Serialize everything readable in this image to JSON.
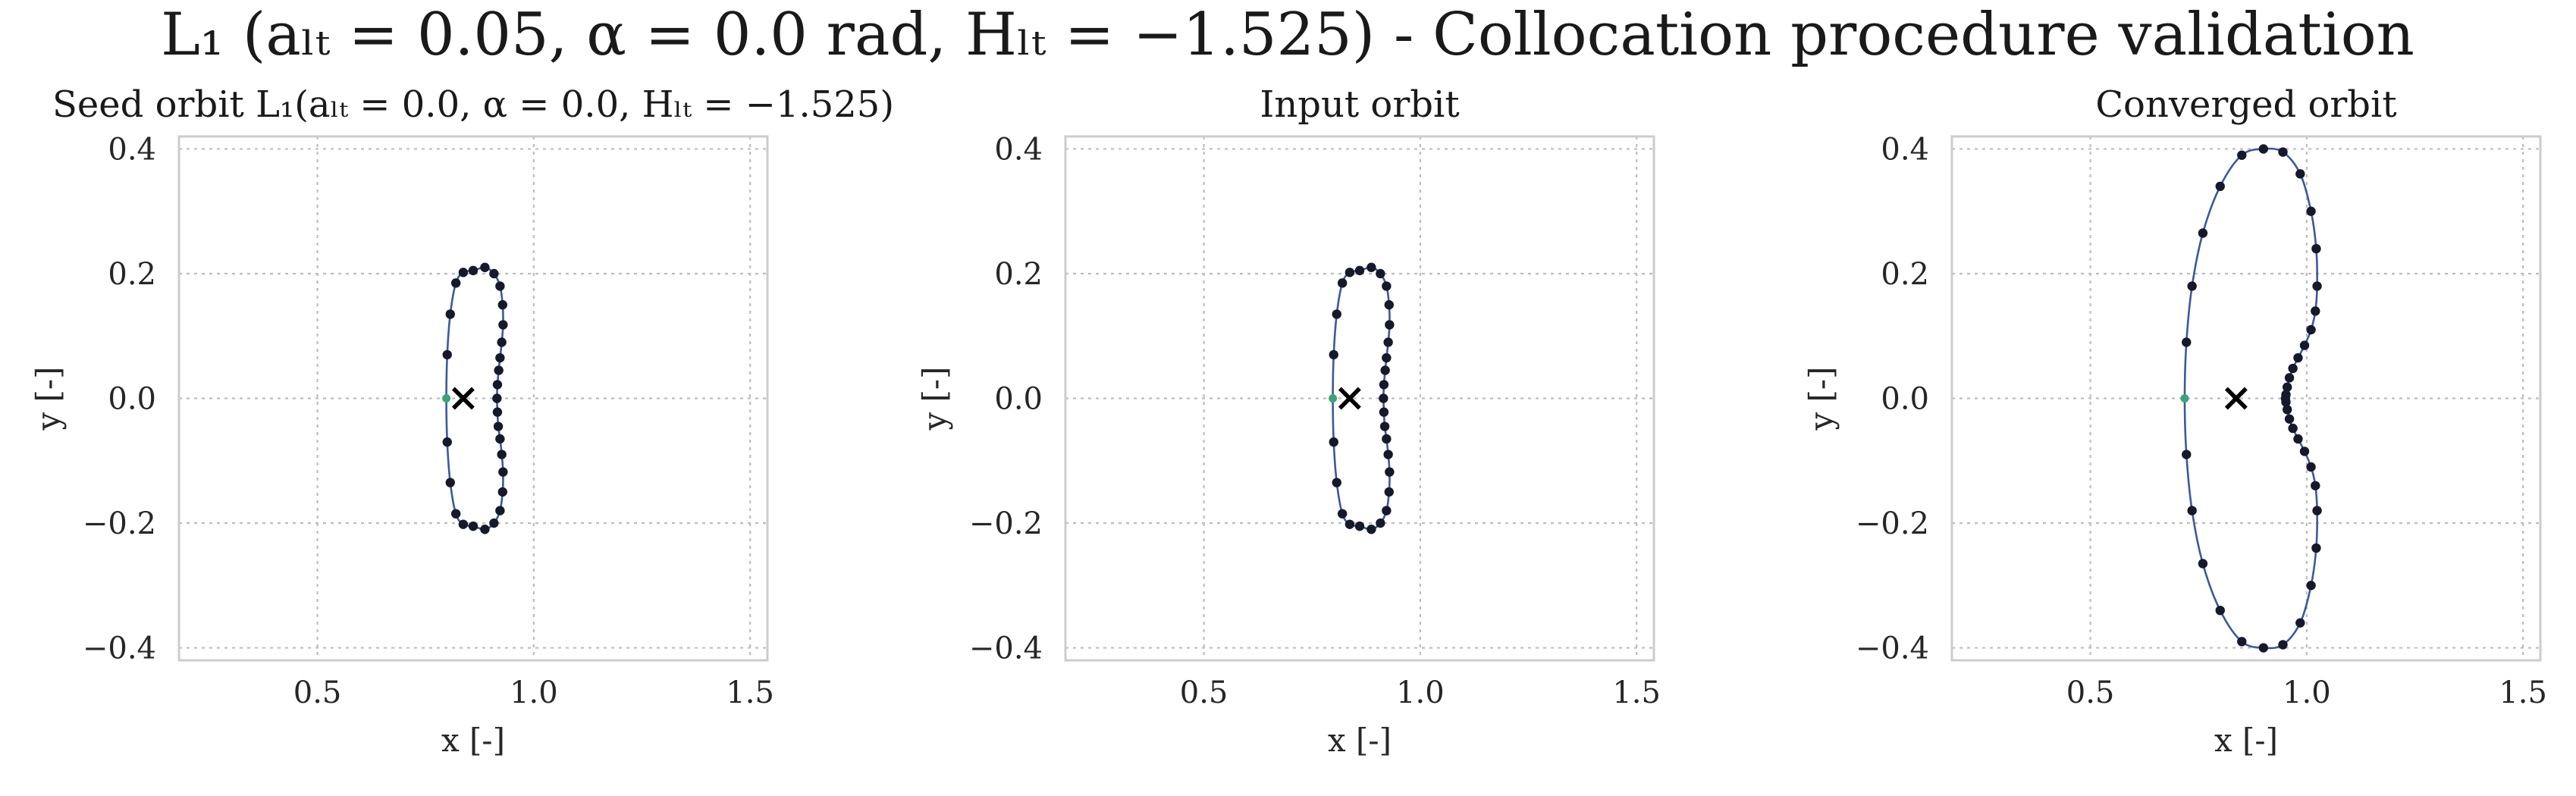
{
  "figure": {
    "suptitle": "L₁ (aₗₜ = 0.05, α = 0.0 rad, Hₗₜ = −1.525) - Collocation procedure validation"
  },
  "colors": {
    "orbit_line": "#3b5a9a",
    "nodes": "#15192b",
    "start_point": "#3aa37b",
    "libration_point": "#000000",
    "grid": "#bdbdbd",
    "frame": "#cccccc"
  },
  "chart_data": [
    {
      "type": "scatter",
      "title": "Seed orbit L₁(aₗₜ = 0.0, α = 0.0, Hₗₜ = −1.525)",
      "xlabel": "x [-]",
      "ylabel": "y [-]",
      "xlim": [
        0.18,
        1.54
      ],
      "ylim": [
        -0.42,
        0.42
      ],
      "xticks": [
        0.5,
        1.0,
        1.5
      ],
      "xtick_labels": [
        "0.5",
        "1.0",
        "1.5"
      ],
      "yticks": [
        -0.4,
        -0.2,
        0.0,
        0.2,
        0.4
      ],
      "ytick_labels": [
        "−0.4",
        "−0.2",
        "0.0",
        "0.2",
        "0.4"
      ],
      "grid": true,
      "libration_point": [
        0.837,
        0.0
      ],
      "start_point": [
        0.798,
        0.0
      ],
      "series": [
        {
          "x": [
            0.798,
            0.8,
            0.807,
            0.82,
            0.837,
            0.86,
            0.887,
            0.908,
            0.922,
            0.928,
            0.929,
            0.926,
            0.922,
            0.919,
            0.916,
            0.915,
            0.916,
            0.918,
            0.922,
            0.926,
            0.929,
            0.928,
            0.922,
            0.908,
            0.887,
            0.86,
            0.837,
            0.82,
            0.807,
            0.8
          ],
          "y": [
            0.0,
            0.07,
            0.135,
            0.185,
            0.202,
            0.205,
            0.21,
            0.2,
            0.18,
            0.15,
            0.118,
            0.09,
            0.065,
            0.045,
            0.022,
            0.0,
            -0.022,
            -0.045,
            -0.065,
            -0.09,
            -0.118,
            -0.15,
            -0.18,
            -0.2,
            -0.21,
            -0.205,
            -0.202,
            -0.185,
            -0.135,
            -0.07
          ]
        }
      ]
    },
    {
      "type": "scatter",
      "title": "Input orbit",
      "xlabel": "x [-]",
      "ylabel": "y [-]",
      "xlim": [
        0.18,
        1.54
      ],
      "ylim": [
        -0.42,
        0.42
      ],
      "xticks": [
        0.5,
        1.0,
        1.5
      ],
      "xtick_labels": [
        "0.5",
        "1.0",
        "1.5"
      ],
      "yticks": [
        -0.4,
        -0.2,
        0.0,
        0.2,
        0.4
      ],
      "ytick_labels": [
        "−0.4",
        "−0.2",
        "0.0",
        "0.2",
        "0.4"
      ],
      "grid": true,
      "libration_point": [
        0.837,
        0.0
      ],
      "start_point": [
        0.798,
        0.0
      ],
      "series": [
        {
          "x": [
            0.798,
            0.8,
            0.807,
            0.82,
            0.837,
            0.86,
            0.887,
            0.908,
            0.922,
            0.928,
            0.929,
            0.926,
            0.922,
            0.919,
            0.916,
            0.915,
            0.916,
            0.918,
            0.922,
            0.926,
            0.929,
            0.928,
            0.922,
            0.908,
            0.887,
            0.86,
            0.837,
            0.82,
            0.807,
            0.8
          ],
          "y": [
            0.0,
            0.07,
            0.135,
            0.185,
            0.202,
            0.205,
            0.21,
            0.2,
            0.18,
            0.15,
            0.118,
            0.09,
            0.065,
            0.045,
            0.022,
            0.0,
            -0.022,
            -0.045,
            -0.065,
            -0.09,
            -0.118,
            -0.15,
            -0.18,
            -0.2,
            -0.21,
            -0.205,
            -0.202,
            -0.185,
            -0.135,
            -0.07
          ]
        }
      ]
    },
    {
      "type": "scatter",
      "title": "Converged orbit",
      "xlabel": "x [-]",
      "ylabel": "y [-]",
      "xlim": [
        0.18,
        1.54
      ],
      "ylim": [
        -0.42,
        0.42
      ],
      "xticks": [
        0.5,
        1.0,
        1.5
      ],
      "xtick_labels": [
        "0.5",
        "1.0",
        "1.5"
      ],
      "yticks": [
        -0.4,
        -0.2,
        0.0,
        0.2,
        0.4
      ],
      "ytick_labels": [
        "−0.4",
        "−0.2",
        "0.0",
        "0.2",
        "0.4"
      ],
      "grid": true,
      "libration_point": [
        0.837,
        0.0
      ],
      "start_point": [
        0.718,
        0.0
      ],
      "series": [
        {
          "x": [
            0.718,
            0.722,
            0.735,
            0.76,
            0.8,
            0.85,
            0.9,
            0.945,
            0.985,
            1.01,
            1.022,
            1.024,
            1.02,
            1.01,
            0.995,
            0.98,
            0.968,
            0.96,
            0.955,
            0.952,
            0.951,
            0.952,
            0.955,
            0.96,
            0.968,
            0.98,
            0.995,
            1.01,
            1.02,
            1.024,
            1.022,
            1.01,
            0.985,
            0.945,
            0.9,
            0.85,
            0.8,
            0.76,
            0.735,
            0.722
          ],
          "y": [
            0.0,
            0.09,
            0.18,
            0.265,
            0.34,
            0.39,
            0.4,
            0.395,
            0.36,
            0.3,
            0.24,
            0.18,
            0.14,
            0.11,
            0.085,
            0.065,
            0.048,
            0.033,
            0.018,
            0.006,
            0.0,
            -0.006,
            -0.018,
            -0.033,
            -0.048,
            -0.065,
            -0.085,
            -0.11,
            -0.14,
            -0.18,
            -0.24,
            -0.3,
            -0.36,
            -0.395,
            -0.4,
            -0.39,
            -0.34,
            -0.265,
            -0.18,
            -0.09
          ]
        }
      ]
    }
  ]
}
